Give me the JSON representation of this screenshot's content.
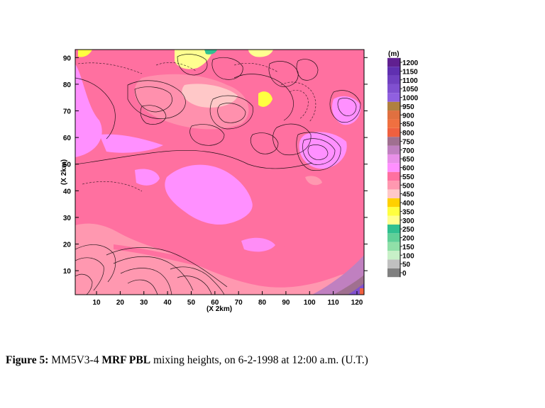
{
  "chart_data": {
    "type": "heatmap",
    "title": "",
    "xlabel": "(X 2km)",
    "ylabel": "(X 2km)",
    "xlim": [
      1,
      123
    ],
    "ylim": [
      1,
      93
    ],
    "x_ticks": [
      10,
      20,
      30,
      40,
      50,
      60,
      70,
      80,
      90,
      100,
      110,
      120
    ],
    "y_ticks": [
      10,
      20,
      30,
      40,
      50,
      60,
      70,
      80,
      90
    ],
    "colorbar": {
      "unit": "(m)",
      "levels": [
        0,
        50,
        100,
        150,
        200,
        250,
        300,
        350,
        400,
        450,
        500,
        550,
        600,
        650,
        700,
        750,
        800,
        850,
        900,
        950,
        1000,
        1050,
        1100,
        1150,
        1200
      ],
      "colors": [
        "#808080",
        "#c0c0c0",
        "#c8f0c8",
        "#90e0a8",
        "#60d098",
        "#30c090",
        "#ffff90",
        "#ffff40",
        "#ffd000",
        "#ffc8c8",
        "#ff98b0",
        "#ff70a0",
        "#ff90ff",
        "#e890e8",
        "#c080c0",
        "#a07090",
        "#f06040",
        "#f07040",
        "#e07040",
        "#b08040",
        "#9060e0",
        "#8050d0",
        "#7040c0",
        "#6030b0",
        "#602090"
      ]
    },
    "regions": [
      {
        "value": 550,
        "description_level": "dominant"
      },
      {
        "value": 600,
        "area": "central-west lobe"
      },
      {
        "value": 500,
        "area": "southwest"
      },
      {
        "value": 350,
        "area": "north edge patches"
      },
      {
        "value": 1150,
        "area": "southeast corner"
      }
    ]
  },
  "caption": {
    "label": "Figure 5:",
    "model": " MM5V3-4 ",
    "scheme": "MRF PBL",
    "rest": " mixing heights, on 6-2-1998 at 12:00 a.m. (U.T.)"
  }
}
